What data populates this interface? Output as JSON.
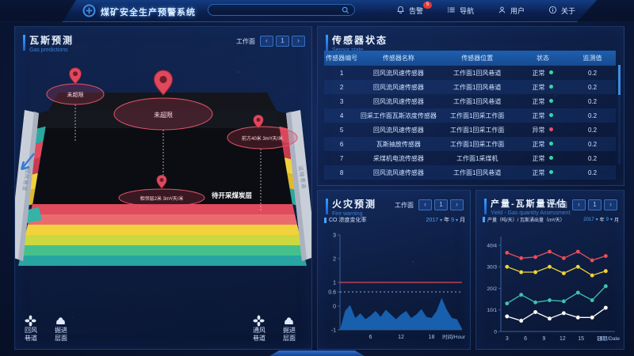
{
  "colors": {
    "ok": "#35d6a5",
    "bad": "#e0506a",
    "accent": "#3f8de0",
    "area": "#1a67ba",
    "threshold": "#e0485c"
  },
  "header": {
    "title": "煤矿安全生产预警系统",
    "search": {
      "value": "",
      "placeholder": ""
    },
    "nav": [
      {
        "icon": "bell",
        "label": "告警",
        "badge": "5"
      },
      {
        "icon": "list",
        "label": "导航"
      },
      {
        "icon": "user",
        "label": "用户"
      },
      {
        "icon": "info",
        "label": "关于"
      }
    ]
  },
  "gas_panel": {
    "title": "瓦斯预测",
    "subtitle": "Gas predictions",
    "workface_label": "工作面",
    "page": "1",
    "annotations": {
      "pin1": "未超限",
      "pin2": "未超限",
      "right": "前方40米 3m³/天/米",
      "bottom": "相邻层2米 3m³/天/米",
      "coal": "待开采煤炭层",
      "left_rail": "回风巷道",
      "right_rail": "运输巷道"
    },
    "legend_left": [
      {
        "icon": "fan",
        "label": "回风巷道"
      },
      {
        "icon": "heap",
        "label": "掘进层面"
      }
    ],
    "legend_right": [
      {
        "icon": "fan",
        "label": "通风巷道"
      },
      {
        "icon": "heap",
        "label": "掘进层面"
      }
    ]
  },
  "sensor_panel": {
    "title": "传感器状态",
    "subtitle": "Sensor state",
    "columns": [
      "传感器编号",
      "传感器名称",
      "传感器位置",
      "状态",
      "监测值"
    ],
    "rows": [
      {
        "no": "1",
        "name": "回风流风速传感器",
        "loc": "工作面1回风巷道",
        "status": "正常",
        "state": "ok",
        "value": "0.2"
      },
      {
        "no": "2",
        "name": "回风流风速传感器",
        "loc": "工作面1回风巷道",
        "status": "正常",
        "state": "ok",
        "value": "0.2"
      },
      {
        "no": "3",
        "name": "回风流风速传感器",
        "loc": "工作面1回风巷道",
        "status": "正常",
        "state": "ok",
        "value": "0.2"
      },
      {
        "no": "4",
        "name": "回采工作面瓦斯浓度传感器",
        "loc": "工作面1回采工作面",
        "status": "正常",
        "state": "ok",
        "value": "0.2"
      },
      {
        "no": "5",
        "name": "回风流风速传感器",
        "loc": "工作面1回采工作面",
        "status": "异常",
        "state": "bad",
        "value": "0.2"
      },
      {
        "no": "6",
        "name": "瓦斯抽放传感器",
        "loc": "工作面1回采工作面",
        "status": "正常",
        "state": "ok",
        "value": "0.2"
      },
      {
        "no": "7",
        "name": "采煤机电流传感器",
        "loc": "工作面1采煤机",
        "status": "正常",
        "state": "ok",
        "value": "0.2"
      },
      {
        "no": "8",
        "name": "回风流风速传感器",
        "loc": "工作面1回风巷道",
        "status": "正常",
        "state": "ok",
        "value": "0.2"
      }
    ]
  },
  "fire_panel": {
    "title": "火灾预测",
    "subtitle": "Fire warning",
    "workface_label": "工作面",
    "page": "1",
    "series_label": "CO 浓度变化率",
    "year": "2017",
    "year_suffix": "年",
    "month": "9",
    "month_suffix": "月"
  },
  "yield_panel": {
    "title": "产量-瓦斯量评估",
    "subtitle": "Yield - Gas quantity Assessment",
    "workface_label": "工作面",
    "page": "1",
    "series_label": "产量（吨/天）/ 瓦斯涌出量（m³/天）",
    "year": "2017",
    "year_suffix": "年",
    "month": "9",
    "month_suffix": "月"
  },
  "chart_data": [
    {
      "type": "area",
      "title": "CO 浓度变化率",
      "x": [
        0,
        1,
        2,
        3,
        4,
        5,
        6,
        7,
        8,
        9,
        10,
        11,
        12,
        13,
        14,
        15,
        16,
        17,
        18,
        19,
        20,
        21,
        22,
        23,
        24
      ],
      "values": [
        -1,
        -0.2,
        0.05,
        -0.5,
        -0.3,
        -0.55,
        -0.4,
        -0.2,
        -0.45,
        -0.15,
        -0.35,
        -0.55,
        -0.35,
        -0.2,
        -0.5,
        -0.35,
        -0.12,
        -0.45,
        -0.5,
        -0.2,
        0.35,
        -0.15,
        -0.5,
        -0.55,
        -0.95
      ],
      "xlabel": "时间/Hour",
      "ylabel": "",
      "xlim": [
        0,
        24
      ],
      "ylim": [
        -1,
        3
      ],
      "yticks": [
        3,
        2,
        1,
        0.6,
        0,
        -1
      ],
      "xticks": [
        6,
        12,
        18
      ],
      "threshold_solid": 1,
      "threshold_dashed": 0.6,
      "grid": false,
      "legend": "none"
    },
    {
      "type": "line",
      "title": "产量（吨/天）/ 瓦斯涌出量（m³/天）",
      "x": [
        3,
        5.3,
        7.6,
        9.9,
        12.2,
        14.5,
        16.8,
        19
      ],
      "series": [
        {
          "name": "产量-红",
          "color": "#e8505f",
          "values": [
            36.5,
            34,
            34.5,
            37,
            34,
            37,
            33,
            35
          ]
        },
        {
          "name": "瓦斯涌出量-黄",
          "color": "#f0d43c",
          "values": [
            30,
            27.5,
            27.5,
            30,
            27,
            30,
            26,
            28
          ]
        },
        {
          "name": "评估-青",
          "color": "#3fc3b4",
          "values": [
            13,
            17,
            13.5,
            14.5,
            14,
            18,
            14.5,
            21
          ]
        },
        {
          "name": "评估-白",
          "color": "#ffffff",
          "values": [
            7,
            5,
            9,
            6,
            8.5,
            6.5,
            6.5,
            11
          ]
        }
      ],
      "xlabel": "日期/Date",
      "ylabel": "",
      "xlim": [
        2,
        20.5
      ],
      "ylim": [
        0,
        44
      ],
      "yticks": [
        0,
        10,
        20,
        30,
        40
      ],
      "ytick_labels": [
        "0",
        "10/1",
        "20/2",
        "30/3",
        "40/4"
      ],
      "xticks": [
        3,
        6,
        9,
        12,
        15,
        18
      ],
      "grid": false,
      "legend": "none"
    }
  ]
}
